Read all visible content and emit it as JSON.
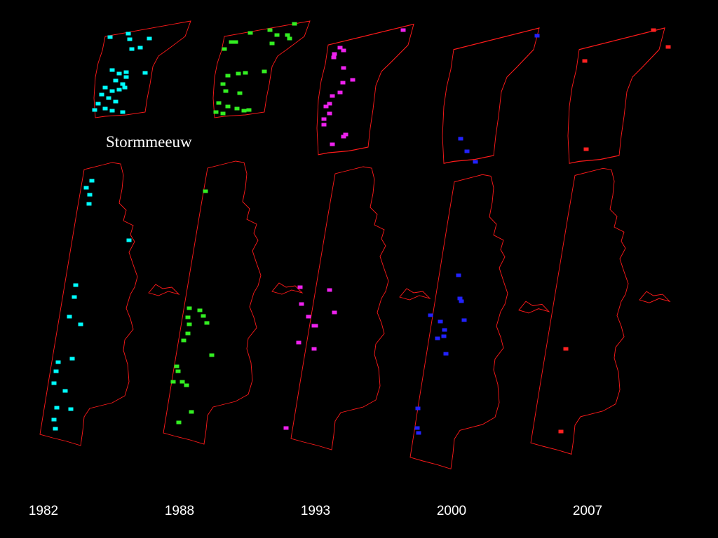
{
  "title": "Stormmeeuw",
  "panels": [
    {
      "year": "1982",
      "color": "#00ffff"
    },
    {
      "year": "1988",
      "color": "#33ee22"
    },
    {
      "year": "1993",
      "color": "#ee22ee"
    },
    {
      "year": "2000",
      "color": "#2222ff"
    },
    {
      "year": "2007",
      "color": "#ff2222"
    }
  ]
}
